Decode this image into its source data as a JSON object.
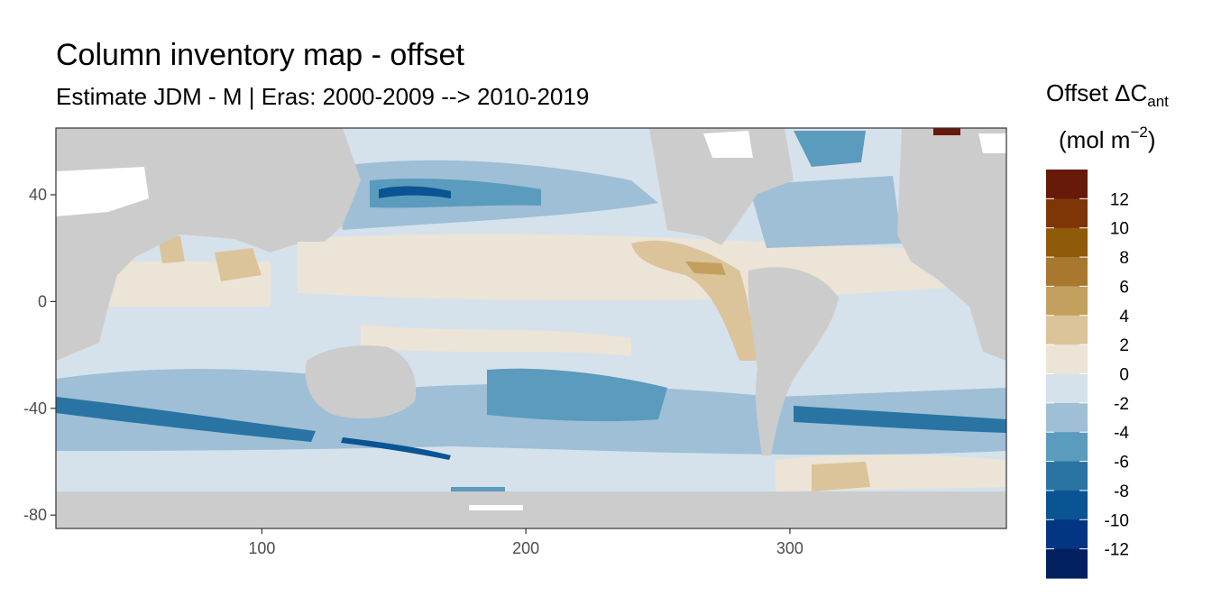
{
  "chart_data": {
    "type": "heatmap",
    "title": "Column inventory map - offset",
    "subtitle": "Estimate JDM - M | Eras: 2000-2009 --> 2010-2019",
    "xlim": [
      22,
      382
    ],
    "ylim": [
      -85,
      65
    ],
    "x_ticks": [
      100,
      200,
      300
    ],
    "y_ticks": [
      40,
      0,
      -40,
      -80
    ],
    "legend": {
      "title_prefix": "Offset ΔC",
      "title_sub": "ant",
      "units_prefix": "(mol m",
      "units_sup": "−2",
      "units_suffix": ")",
      "position": "right",
      "breaks": [
        12,
        10,
        8,
        6,
        4,
        2,
        0,
        -2,
        -4,
        -6,
        -8,
        -10,
        -12
      ],
      "colors": [
        "#67190a",
        "#7e3507",
        "#8f5a0a",
        "#a9782f",
        "#c3a05e",
        "#dbc39a",
        "#ece4d6",
        "#d5e2ec",
        "#9ebfd6",
        "#5b9bbd",
        "#2a74a4",
        "#0a5493",
        "#033582",
        "#02205f"
      ]
    },
    "colors": {
      "land": "#cccccc",
      "missing": "#ffffff",
      "panel_border": "#333333"
    }
  }
}
